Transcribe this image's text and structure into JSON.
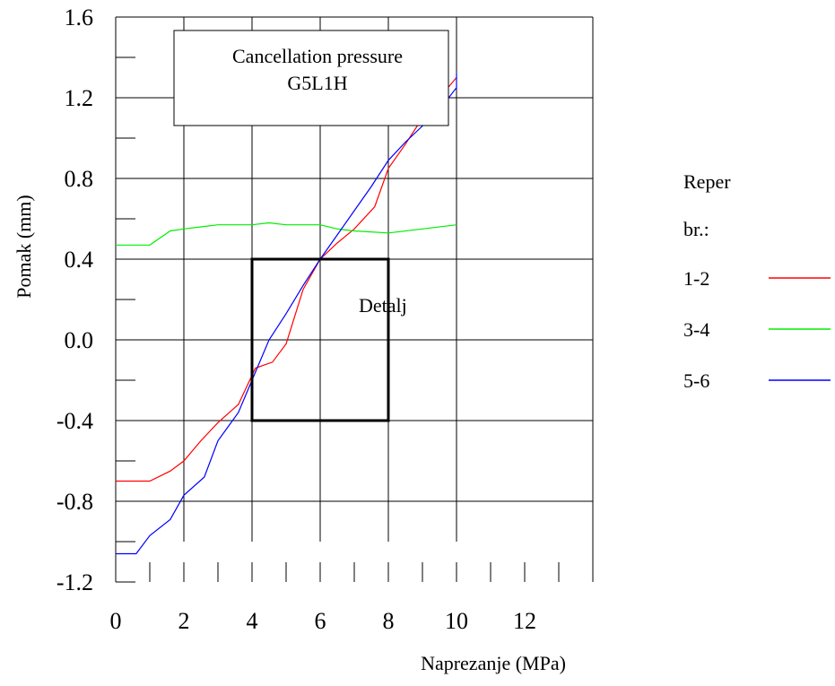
{
  "chart_data": {
    "type": "line",
    "title_box": {
      "line1": "Cancellation pressure",
      "line2": "G5L1H"
    },
    "xlabel": "Naprezanje (MPa)",
    "ylabel": "Pomak (mm)",
    "xlim": [
      0,
      14
    ],
    "ylim": [
      -1.2,
      1.6
    ],
    "x_ticks": [
      0,
      2,
      4,
      6,
      8,
      10,
      12
    ],
    "x_tick_labels": [
      "0",
      "2",
      "4",
      "6",
      "8",
      "10",
      "12"
    ],
    "y_ticks": [
      -1.2,
      -0.8,
      -0.4,
      0.0,
      0.4,
      0.8,
      1.2,
      1.6
    ],
    "y_tick_labels": [
      "-1.2",
      "-0.8",
      "-0.4",
      "0.0",
      "0.4",
      "0.8",
      "1.2",
      "1.6"
    ],
    "grid": true,
    "detail_box": {
      "label": "Detalj",
      "x_range": [
        4,
        8
      ],
      "y_range": [
        -0.4,
        0.4
      ]
    },
    "legend": {
      "title_line1": "Reper",
      "title_line2": "br.:",
      "placement": "right"
    },
    "series": [
      {
        "name": "1-2",
        "color": "#ff0000",
        "points": [
          [
            0,
            -0.7
          ],
          [
            1.0,
            -0.7
          ],
          [
            1.6,
            -0.65
          ],
          [
            2.0,
            -0.6
          ],
          [
            2.5,
            -0.5
          ],
          [
            3.0,
            -0.41
          ],
          [
            3.6,
            -0.32
          ],
          [
            4.1,
            -0.14
          ],
          [
            4.6,
            -0.11
          ],
          [
            5.0,
            -0.02
          ],
          [
            5.5,
            0.25
          ],
          [
            6.0,
            0.4
          ],
          [
            6.5,
            0.48
          ],
          [
            7.0,
            0.55
          ],
          [
            7.6,
            0.66
          ],
          [
            8.0,
            0.85
          ],
          [
            8.5,
            0.97
          ],
          [
            9.0,
            1.1
          ],
          [
            9.5,
            1.2
          ],
          [
            10.0,
            1.3
          ]
        ]
      },
      {
        "name": "3-4",
        "color": "#00ee00",
        "points": [
          [
            0,
            0.47
          ],
          [
            1.0,
            0.47
          ],
          [
            1.6,
            0.54
          ],
          [
            2.0,
            0.55
          ],
          [
            2.5,
            0.56
          ],
          [
            3.0,
            0.57
          ],
          [
            4.0,
            0.57
          ],
          [
            4.5,
            0.58
          ],
          [
            5.0,
            0.57
          ],
          [
            5.5,
            0.57
          ],
          [
            6.0,
            0.57
          ],
          [
            6.5,
            0.55
          ],
          [
            7.0,
            0.54
          ],
          [
            8.0,
            0.53
          ],
          [
            9.0,
            0.55
          ],
          [
            10.0,
            0.57
          ]
        ]
      },
      {
        "name": "5-6",
        "color": "#0000ff",
        "points": [
          [
            0,
            -1.06
          ],
          [
            0.6,
            -1.06
          ],
          [
            1.0,
            -0.97
          ],
          [
            1.6,
            -0.89
          ],
          [
            2.0,
            -0.77
          ],
          [
            2.6,
            -0.68
          ],
          [
            3.0,
            -0.5
          ],
          [
            3.6,
            -0.36
          ],
          [
            4.0,
            -0.2
          ],
          [
            4.5,
            0.0
          ],
          [
            5.0,
            0.13
          ],
          [
            5.5,
            0.27
          ],
          [
            6.0,
            0.4
          ],
          [
            6.5,
            0.52
          ],
          [
            7.0,
            0.64
          ],
          [
            7.5,
            0.76
          ],
          [
            8.0,
            0.89
          ],
          [
            8.5,
            0.98
          ],
          [
            9.0,
            1.06
          ],
          [
            9.5,
            1.14
          ],
          [
            10.0,
            1.25
          ],
          [
            10.0,
            1.32
          ]
        ]
      }
    ]
  }
}
